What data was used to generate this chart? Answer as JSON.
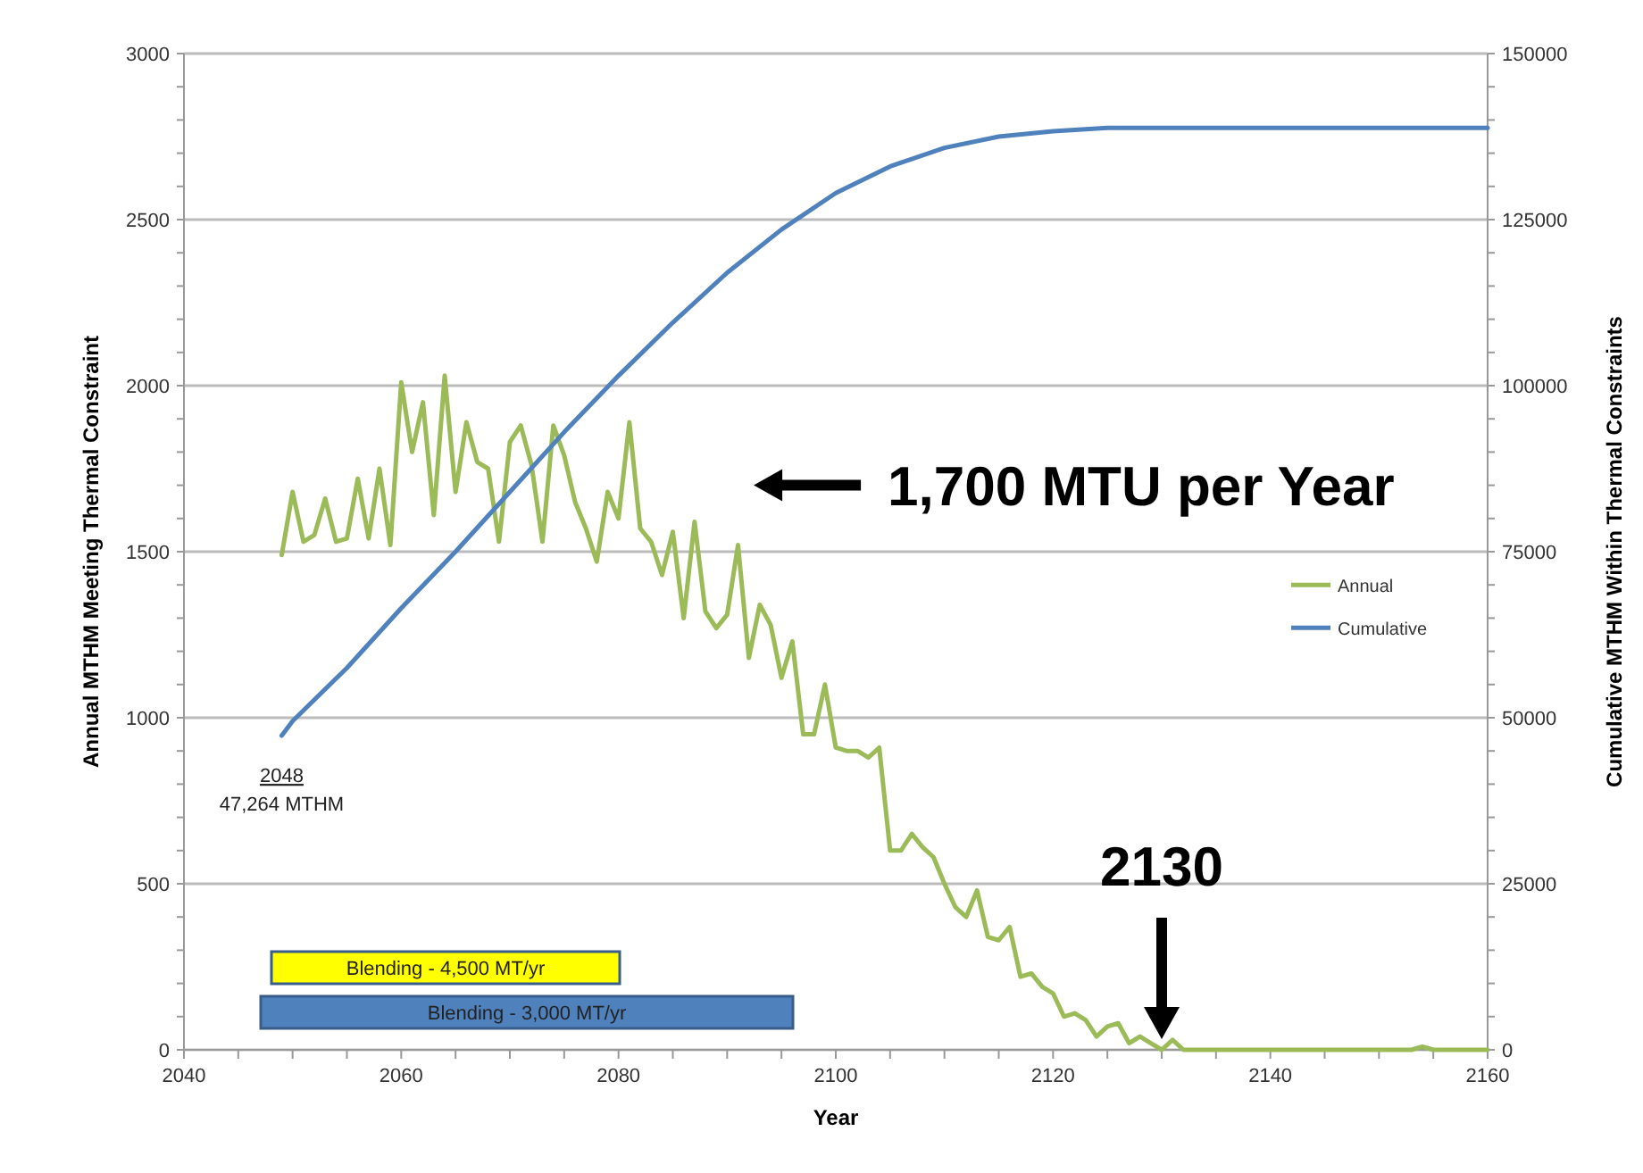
{
  "chart_data": {
    "type": "line",
    "xlabel": "Year",
    "ylabel": "Annual MTHM Meeting Thermal Constraint",
    "y2label": "Cumulative MTHM Within Thermal Constraints",
    "xlim": [
      2040,
      2160
    ],
    "xticks": [
      2040,
      2060,
      2080,
      2100,
      2120,
      2140,
      2160
    ],
    "ylim": [
      0,
      3000
    ],
    "yticks": [
      0,
      500,
      1000,
      1500,
      2000,
      2500,
      3000
    ],
    "y2lim": [
      0,
      150000
    ],
    "y2ticks": [
      0,
      25000,
      50000,
      75000,
      100000,
      125000,
      150000
    ],
    "grid": "y",
    "legend": "right",
    "line_style": "solid",
    "series": [
      {
        "name": "Annual",
        "color": "#9bbb59",
        "x": [
          2049,
          2050,
          2051,
          2052,
          2053,
          2054,
          2055,
          2056,
          2057,
          2058,
          2059,
          2060,
          2061,
          2062,
          2063,
          2064,
          2065,
          2066,
          2067,
          2068,
          2069,
          2070,
          2071,
          2072,
          2073,
          2074,
          2075,
          2076,
          2077,
          2078,
          2079,
          2080,
          2081,
          2082,
          2083,
          2084,
          2085,
          2086,
          2087,
          2088,
          2089,
          2090,
          2091,
          2092,
          2093,
          2094,
          2095,
          2096,
          2097,
          2098,
          2099,
          2100,
          2101,
          2102,
          2103,
          2104,
          2105,
          2106,
          2107,
          2108,
          2109,
          2110,
          2111,
          2112,
          2113,
          2114,
          2115,
          2116,
          2117,
          2118,
          2119,
          2120,
          2121,
          2122,
          2123,
          2124,
          2125,
          2126,
          2127,
          2128,
          2129,
          2130,
          2131,
          2132,
          2153,
          2154,
          2155,
          2160
        ],
        "values": [
          1490,
          1680,
          1530,
          1550,
          1660,
          1530,
          1540,
          1720,
          1540,
          1750,
          1520,
          2010,
          1800,
          1950,
          1610,
          2030,
          1680,
          1890,
          1770,
          1750,
          1530,
          1830,
          1880,
          1760,
          1530,
          1880,
          1790,
          1650,
          1570,
          1470,
          1680,
          1600,
          1890,
          1570,
          1530,
          1430,
          1560,
          1300,
          1590,
          1320,
          1270,
          1310,
          1520,
          1180,
          1340,
          1280,
          1120,
          1230,
          950,
          950,
          1100,
          910,
          900,
          900,
          880,
          910,
          600,
          600,
          650,
          610,
          580,
          500,
          430,
          400,
          480,
          340,
          330,
          370,
          220,
          230,
          190,
          170,
          100,
          110,
          90,
          40,
          70,
          80,
          20,
          40,
          20,
          0,
          30,
          0,
          0,
          10,
          0,
          0
        ]
      },
      {
        "name": "Cumulative",
        "color": "#4f81bd",
        "axis": "y2",
        "x": [
          2049,
          2050,
          2055,
          2060,
          2065,
          2070,
          2075,
          2080,
          2085,
          2090,
          2095,
          2100,
          2105,
          2110,
          2115,
          2120,
          2125,
          2160
        ],
        "values": [
          47300,
          49500,
          57500,
          66500,
          75000,
          84000,
          93000,
          101500,
          109500,
          117000,
          123500,
          129000,
          133000,
          135800,
          137500,
          138300,
          138800,
          138800
        ]
      }
    ],
    "annotations": [
      "2048\n47,264 MTHM",
      "1,700 MTU per Year",
      {
        "text": "2130",
        "x": 2130,
        "y": 0
      },
      "Blending - 4,500 MT/yr",
      "Blending - 3,000 MT/yr"
    ]
  }
}
